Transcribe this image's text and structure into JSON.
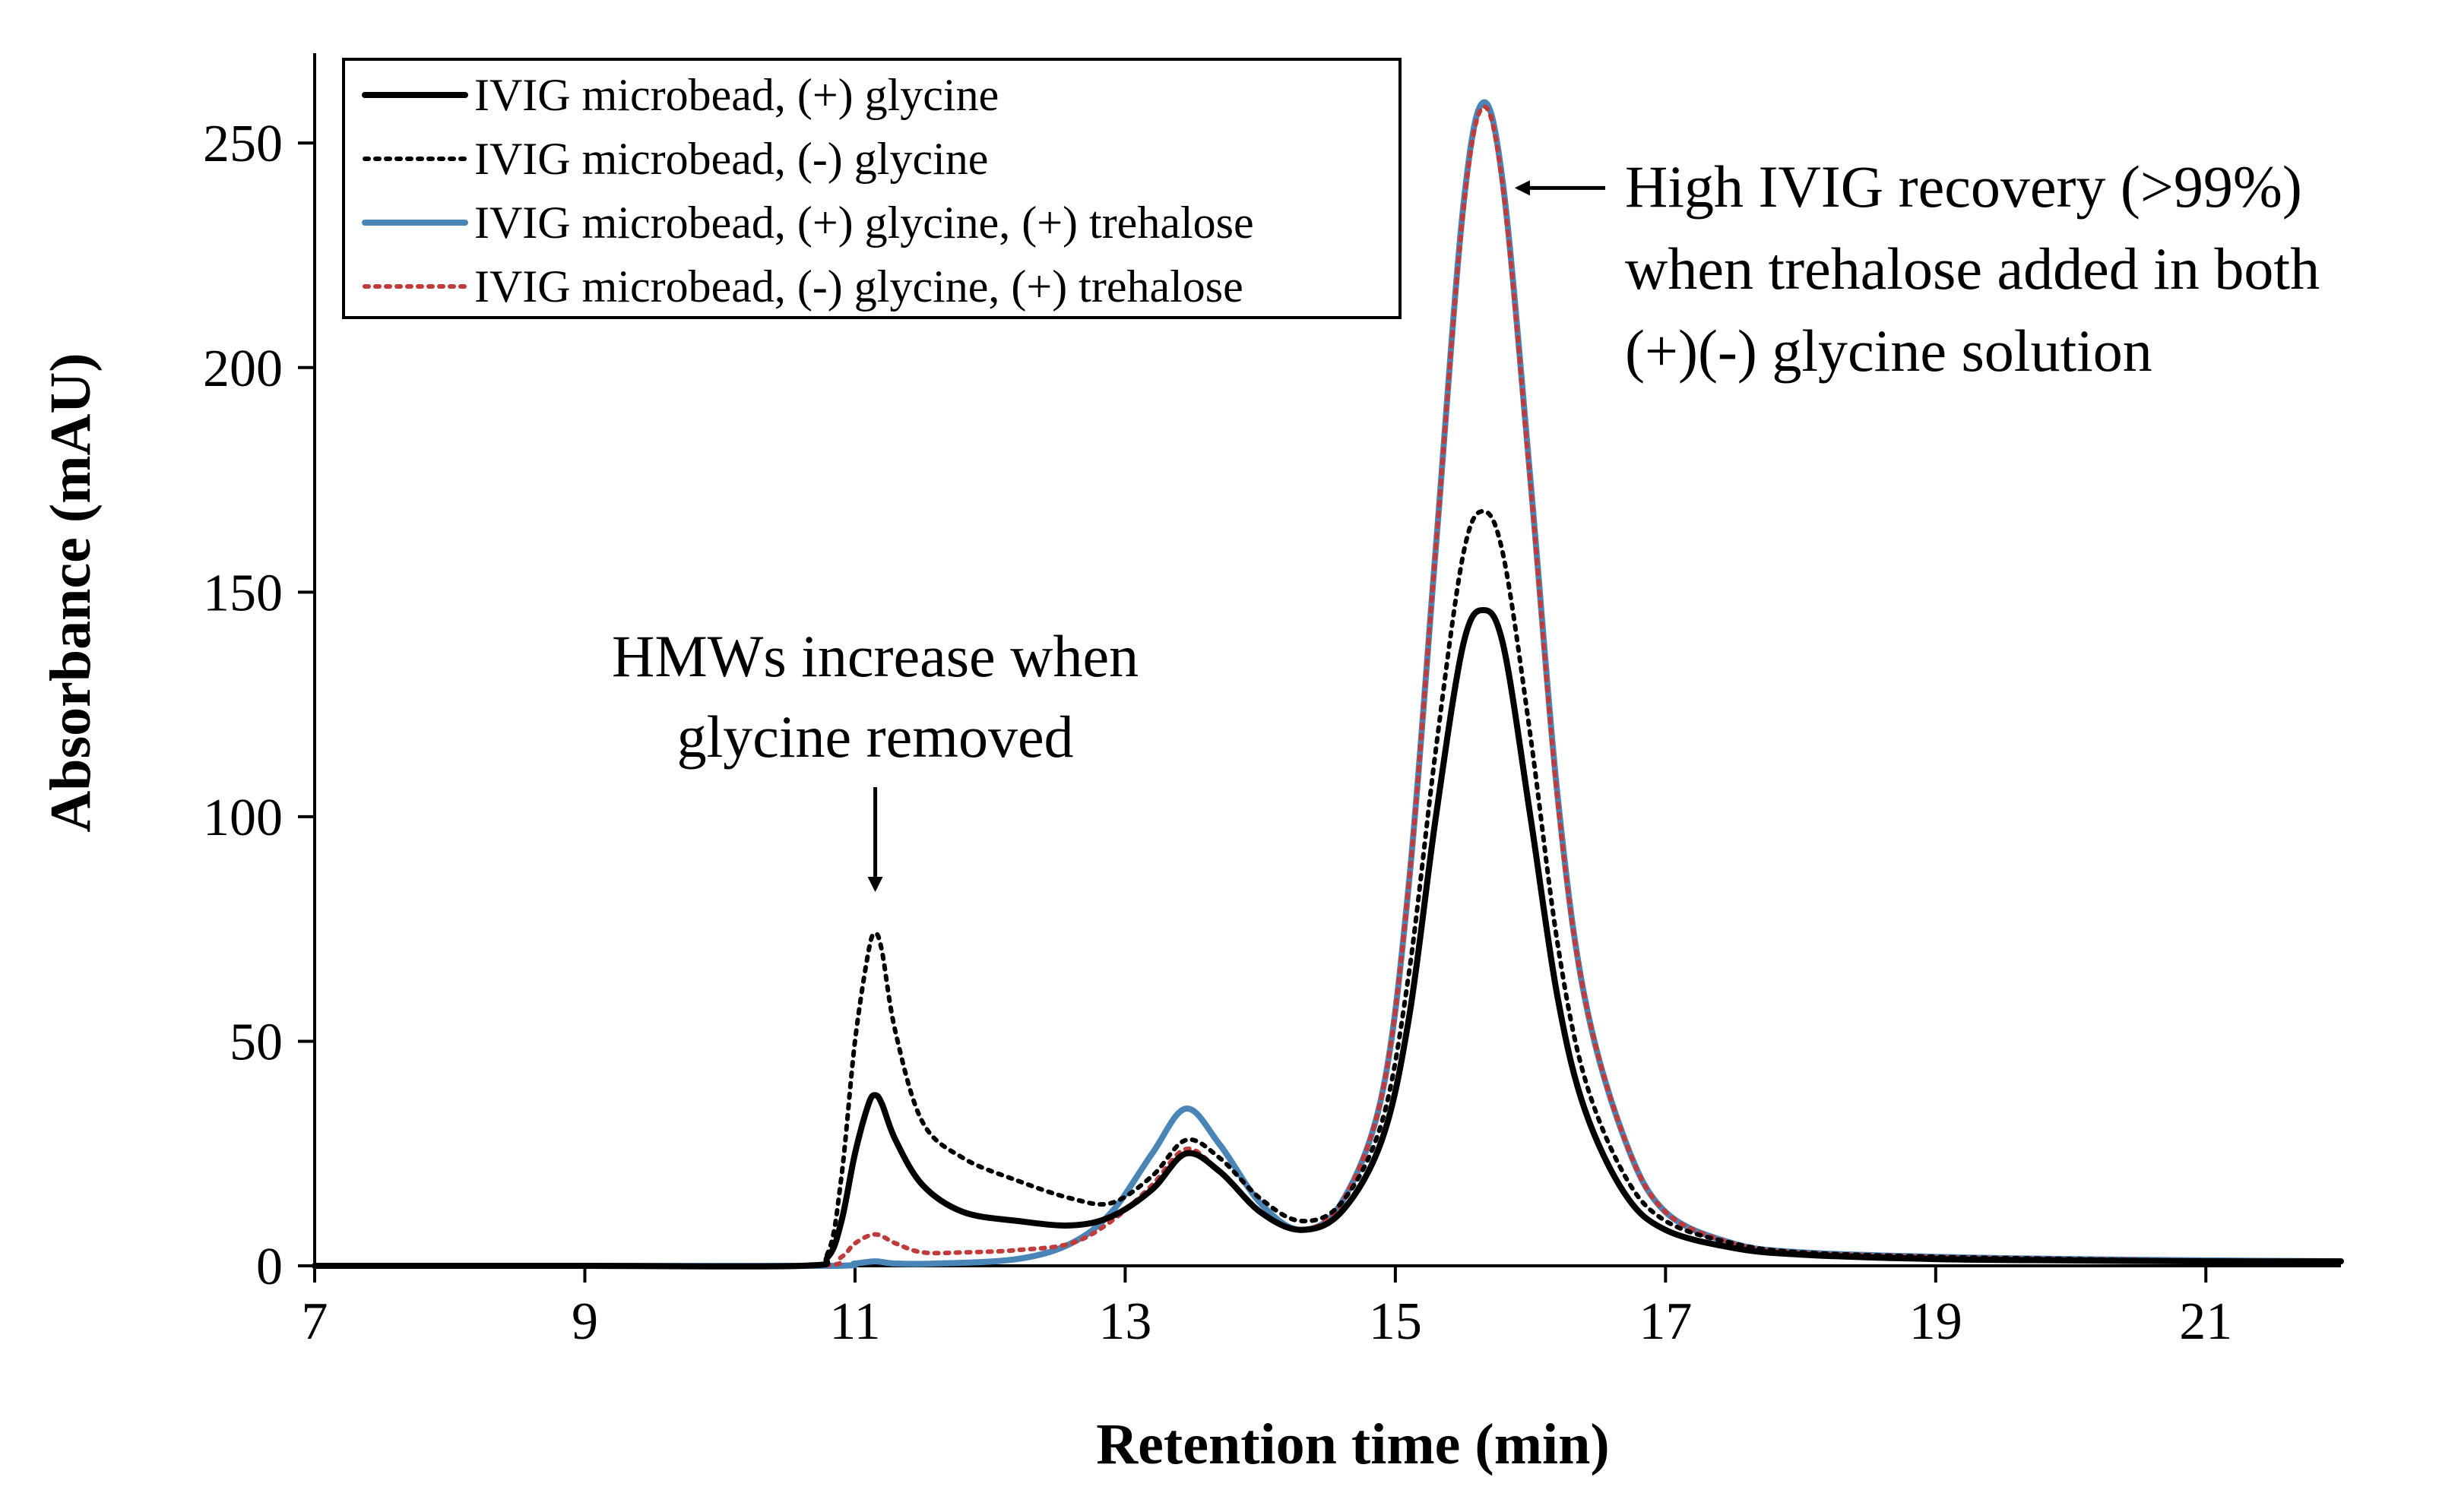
{
  "chart_data": {
    "type": "line",
    "title": "",
    "xlabel": "Retention time (min)",
    "ylabel": "Absorbance (mAU)",
    "xlim": [
      7,
      22
    ],
    "ylim": [
      0,
      270
    ],
    "xticks": [
      7,
      9,
      11,
      13,
      15,
      17,
      19,
      21
    ],
    "yticks": [
      0,
      50,
      100,
      150,
      200,
      250
    ],
    "grid": false,
    "legend_position": "top-left",
    "series": [
      {
        "name": "IVIG microbead, (+) glycine",
        "color": "#000000",
        "style": "solid",
        "x": [
          7,
          9,
          10.6,
          10.8,
          10.9,
          11.0,
          11.1,
          11.15,
          11.2,
          11.3,
          11.5,
          11.8,
          12.2,
          12.6,
          12.9,
          13.2,
          13.45,
          13.7,
          14.0,
          14.3,
          14.6,
          14.9,
          15.1,
          15.3,
          15.5,
          15.65,
          15.8,
          16.0,
          16.2,
          16.4,
          16.7,
          17.0,
          17.5,
          18.0,
          19.0,
          20.0,
          21.0,
          22.0
        ],
        "y": [
          0,
          0,
          0,
          2,
          10,
          25,
          36,
          38,
          36,
          28,
          18,
          12,
          10,
          9,
          11,
          17,
          25,
          21,
          12,
          8,
          12,
          28,
          55,
          100,
          138,
          146,
          138,
          100,
          60,
          35,
          16,
          8,
          4,
          2.5,
          1.5,
          1.2,
          1,
          1
        ]
      },
      {
        "name": "IVIG microbead, (-) glycine",
        "color": "#000000",
        "style": "dotted",
        "x": [
          7,
          9,
          10.6,
          10.8,
          10.9,
          11.0,
          11.1,
          11.15,
          11.2,
          11.3,
          11.5,
          11.8,
          12.2,
          12.6,
          12.9,
          13.2,
          13.45,
          13.7,
          14.0,
          14.3,
          14.6,
          14.9,
          15.1,
          15.3,
          15.5,
          15.65,
          15.8,
          16.0,
          16.2,
          16.4,
          16.7,
          17.0,
          17.5,
          18.0,
          19.0,
          20.0,
          21.0,
          22.0
        ],
        "y": [
          0,
          0,
          0,
          3,
          20,
          50,
          70,
          74,
          70,
          52,
          32,
          24,
          19,
          15,
          14,
          20,
          28,
          24,
          15,
          10,
          14,
          32,
          65,
          115,
          158,
          168,
          158,
          118,
          72,
          42,
          20,
          10,
          5,
          3,
          2,
          1.5,
          1,
          1
        ]
      },
      {
        "name": "IVIG microbead, (+) glycine, (+) trehalose",
        "color": "#4a85b8",
        "style": "solid",
        "x": [
          7,
          9,
          10.8,
          11.0,
          11.15,
          11.3,
          11.6,
          12.2,
          12.6,
          12.9,
          13.2,
          13.45,
          13.7,
          14.0,
          14.3,
          14.6,
          14.9,
          15.1,
          15.3,
          15.5,
          15.65,
          15.8,
          16.0,
          16.2,
          16.4,
          16.7,
          17.0,
          17.5,
          18.0,
          19.0,
          20.0,
          21.0,
          22.0
        ],
        "y": [
          0,
          0,
          0,
          0.5,
          1,
          0.5,
          0.5,
          1.5,
          5,
          12,
          25,
          35,
          27,
          14,
          8,
          14,
          38,
          85,
          160,
          235,
          259,
          240,
          175,
          105,
          60,
          28,
          12,
          5,
          3,
          2,
          1.5,
          1.2,
          1
        ]
      },
      {
        "name": "IVIG microbead, (-) glycine, (+) trehalose",
        "color": "#c23b3b",
        "style": "dotted",
        "x": [
          7,
          9,
          10.7,
          10.9,
          11.0,
          11.15,
          11.3,
          11.5,
          11.8,
          12.2,
          12.6,
          12.9,
          13.2,
          13.45,
          13.7,
          14.0,
          14.3,
          14.6,
          14.9,
          15.1,
          15.3,
          15.5,
          15.65,
          15.8,
          16.0,
          16.2,
          16.4,
          16.7,
          17.0,
          17.5,
          18.0,
          19.0,
          20.0,
          21.0,
          22.0
        ],
        "y": [
          0,
          0,
          0,
          2,
          5,
          7,
          5,
          3,
          3,
          3.5,
          5,
          10,
          18,
          26,
          21,
          12,
          8,
          14,
          38,
          85,
          160,
          234,
          258,
          239,
          174,
          104,
          60,
          28,
          12,
          5,
          3,
          2,
          1.5,
          1.2,
          1
        ]
      }
    ],
    "annotations": [
      {
        "id": "hmw",
        "lines": [
          "HMWs increase when",
          "glycine removed"
        ],
        "arrow": "down",
        "points_to": {
          "x": 11.15,
          "y": 80
        }
      },
      {
        "id": "recovery",
        "lines": [
          "High IVIG recovery (>99%)",
          "when trehalose added in both",
          "(+)(-) glycine solution"
        ],
        "arrow": "left",
        "points_to": {
          "x": 15.85,
          "y": 240
        }
      }
    ]
  }
}
